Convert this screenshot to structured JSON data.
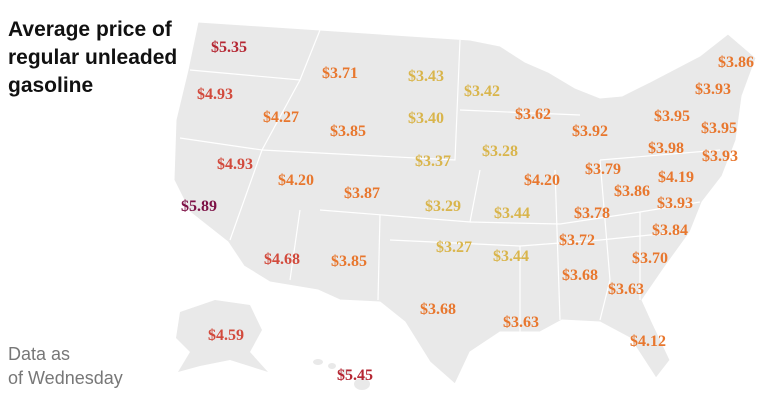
{
  "title": "Average price of regular unleaded gasoline",
  "note_line1": "Data as",
  "note_line2": "of Wednesday",
  "colors": {
    "highest": "#7d1146",
    "high": "#b52733",
    "upper": "#d24a3c",
    "mid": "#e8772e",
    "low": "#d9b54c",
    "land": "#e9e9e9",
    "border": "#ffffff"
  },
  "prices": [
    {
      "value": "$5.35",
      "tier": "high"
    },
    {
      "value": "$4.93",
      "tier": "upper"
    },
    {
      "value": "$3.71",
      "tier": "mid"
    },
    {
      "value": "$3.43",
      "tier": "low"
    },
    {
      "value": "$3.42",
      "tier": "low"
    },
    {
      "value": "$3.86",
      "tier": "mid"
    },
    {
      "value": "$3.93",
      "tier": "mid"
    },
    {
      "value": "$4.27",
      "tier": "mid"
    },
    {
      "value": "$3.85",
      "tier": "mid"
    },
    {
      "value": "$3.40",
      "tier": "low"
    },
    {
      "value": "$3.62",
      "tier": "mid"
    },
    {
      "value": "$3.92",
      "tier": "mid"
    },
    {
      "value": "$3.95",
      "tier": "mid"
    },
    {
      "value": "$3.95",
      "tier": "mid"
    },
    {
      "value": "$4.93",
      "tier": "upper"
    },
    {
      "value": "$4.20",
      "tier": "mid"
    },
    {
      "value": "$3.37",
      "tier": "low"
    },
    {
      "value": "$3.28",
      "tier": "low"
    },
    {
      "value": "$3.98",
      "tier": "mid"
    },
    {
      "value": "$3.93",
      "tier": "mid"
    },
    {
      "value": "$3.79",
      "tier": "mid"
    },
    {
      "value": "$4.20",
      "tier": "mid"
    },
    {
      "value": "$4.19",
      "tier": "mid"
    },
    {
      "value": "$5.89",
      "tier": "highest"
    },
    {
      "value": "$3.87",
      "tier": "mid"
    },
    {
      "value": "$3.29",
      "tier": "low"
    },
    {
      "value": "$3.44",
      "tier": "low"
    },
    {
      "value": "$3.86",
      "tier": "mid"
    },
    {
      "value": "$3.78",
      "tier": "mid"
    },
    {
      "value": "$3.93",
      "tier": "mid"
    },
    {
      "value": "$3.72",
      "tier": "mid"
    },
    {
      "value": "$3.84",
      "tier": "mid"
    },
    {
      "value": "$3.27",
      "tier": "low"
    },
    {
      "value": "$3.44",
      "tier": "low"
    },
    {
      "value": "$4.68",
      "tier": "upper"
    },
    {
      "value": "$3.85",
      "tier": "mid"
    },
    {
      "value": "$3.68",
      "tier": "mid"
    },
    {
      "value": "$3.70",
      "tier": "mid"
    },
    {
      "value": "$3.63",
      "tier": "mid"
    },
    {
      "value": "$3.68",
      "tier": "mid"
    },
    {
      "value": "$3.63",
      "tier": "mid"
    },
    {
      "value": "$4.12",
      "tier": "mid"
    },
    {
      "value": "$4.59",
      "tier": "upper"
    },
    {
      "value": "$5.45",
      "tier": "high"
    }
  ]
}
